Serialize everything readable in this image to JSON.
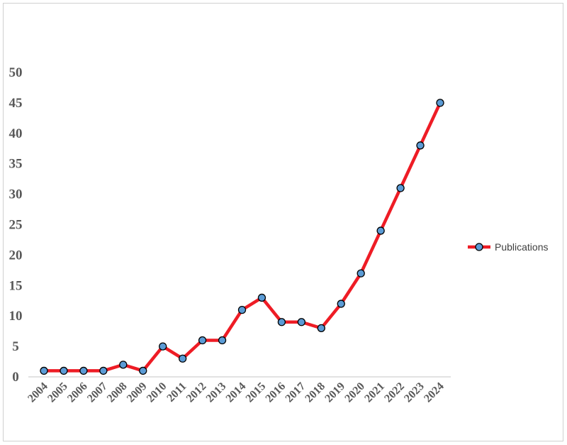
{
  "chart_data": {
    "type": "line",
    "title": "",
    "xlabel": "",
    "ylabel": "",
    "categories": [
      "2004",
      "2005",
      "2006",
      "2007",
      "2008",
      "2009",
      "2010",
      "2011",
      "2012",
      "2013",
      "2014",
      "2015",
      "2016",
      "2017",
      "2018",
      "2019",
      "2020",
      "2021",
      "2022",
      "2023",
      "2024"
    ],
    "series": [
      {
        "name": "Publications",
        "values": [
          1,
          1,
          1,
          1,
          2,
          1,
          5,
          3,
          6,
          6,
          11,
          13,
          9,
          9,
          8,
          12,
          17,
          24,
          31,
          38,
          45
        ],
        "color": "#ee1c25",
        "marker_color": "#5b9bd5"
      }
    ],
    "yticks": [
      0,
      5,
      10,
      15,
      20,
      25,
      30,
      35,
      40,
      45,
      50
    ],
    "ylim": [
      0,
      50
    ],
    "grid": false,
    "legend": "right"
  }
}
